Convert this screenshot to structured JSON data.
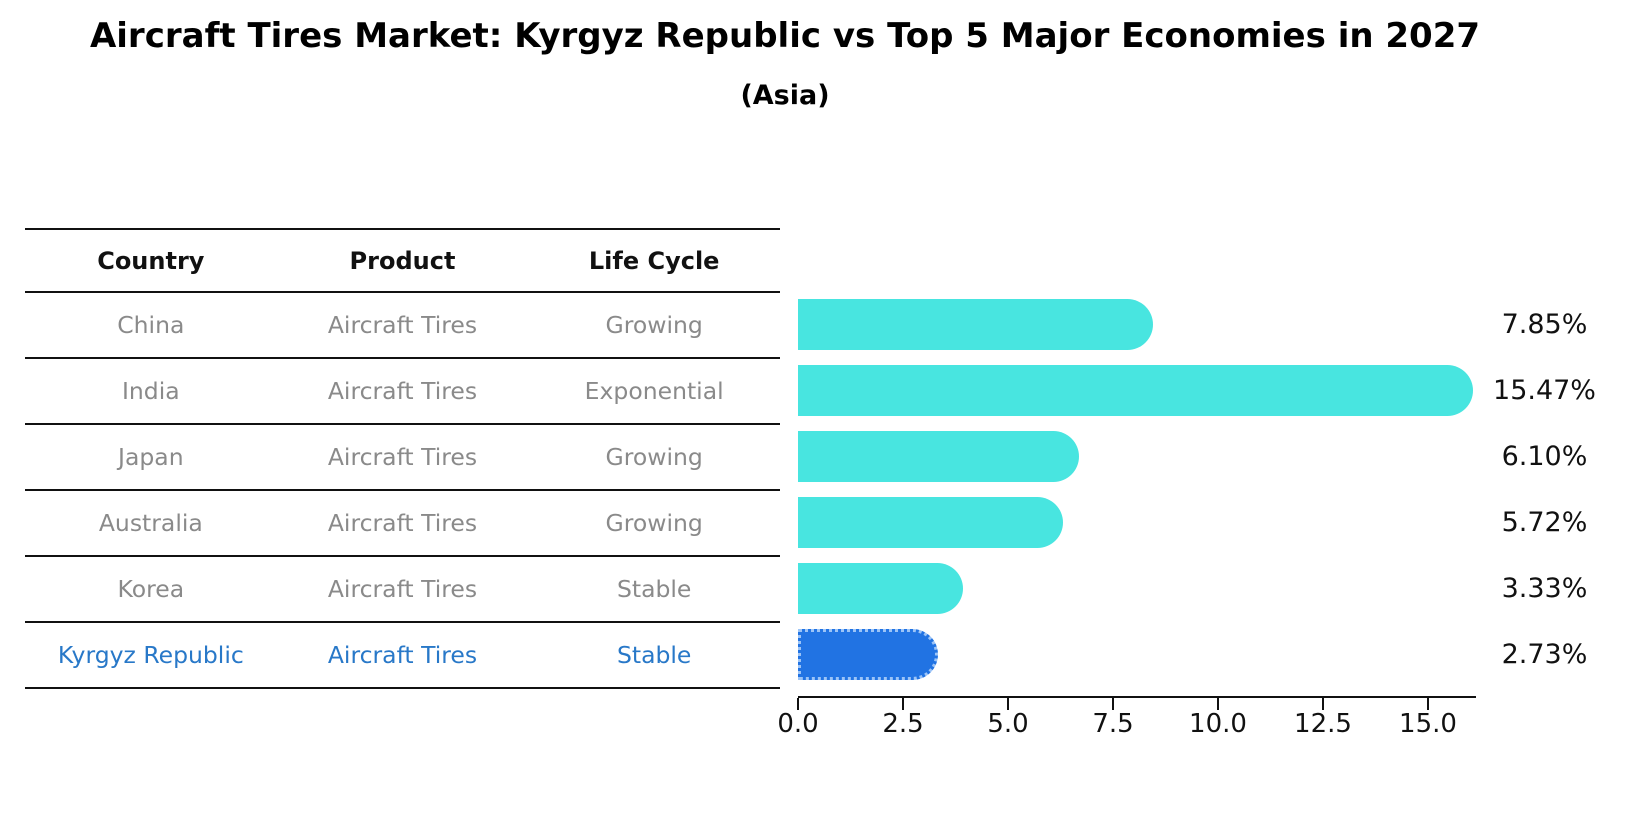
{
  "title": "Aircraft Tires Market: Kyrgyz Republic vs Top 5 Major Economies in 2027",
  "subtitle": "(Asia)",
  "table": {
    "headers": [
      "Country",
      "Product",
      "Life Cycle"
    ],
    "rows": [
      {
        "country": "China",
        "product": "Aircraft Tires",
        "life_cycle": "Growing",
        "highlighted": false
      },
      {
        "country": "India",
        "product": "Aircraft Tires",
        "life_cycle": "Exponential",
        "highlighted": false
      },
      {
        "country": "Japan",
        "product": "Aircraft Tires",
        "life_cycle": "Growing",
        "highlighted": false
      },
      {
        "country": "Australia",
        "product": "Aircraft Tires",
        "life_cycle": "Growing",
        "highlighted": false
      },
      {
        "country": "Korea",
        "product": "Aircraft Tires",
        "life_cycle": "Stable",
        "highlighted": false
      },
      {
        "country": "Kyrgyz Republic",
        "product": "Aircraft Tires",
        "life_cycle": "Stable",
        "highlighted": true
      }
    ]
  },
  "chart_data": {
    "type": "bar",
    "orientation": "horizontal",
    "title": "Aircraft Tires Market: Kyrgyz Republic vs Top 5 Major Economies in 2027",
    "subtitle": "(Asia)",
    "categories": [
      "China",
      "India",
      "Japan",
      "Australia",
      "Korea",
      "Kyrgyz Republic"
    ],
    "values": [
      7.85,
      15.47,
      6.1,
      5.72,
      3.33,
      2.73
    ],
    "value_labels": [
      "7.85%",
      "15.47%",
      "6.10%",
      "5.72%",
      "3.33%",
      "2.73%"
    ],
    "highlighted_index": 5,
    "xticks": [
      "0.0",
      "2.5",
      "5.0",
      "7.5",
      "10.0",
      "12.5",
      "15.0"
    ],
    "xlim": [
      0,
      16.1
    ],
    "xlabel": "",
    "ylabel": "",
    "grid": false,
    "legend": false,
    "colors": {
      "bar": "#48e5e0",
      "highlight_bar": "#2173e3",
      "highlight_bar_dots": "#9cc4f7",
      "highlight_text": "#2878c8",
      "row_text": "#8a8a8a",
      "axis_text": "#111111"
    }
  }
}
